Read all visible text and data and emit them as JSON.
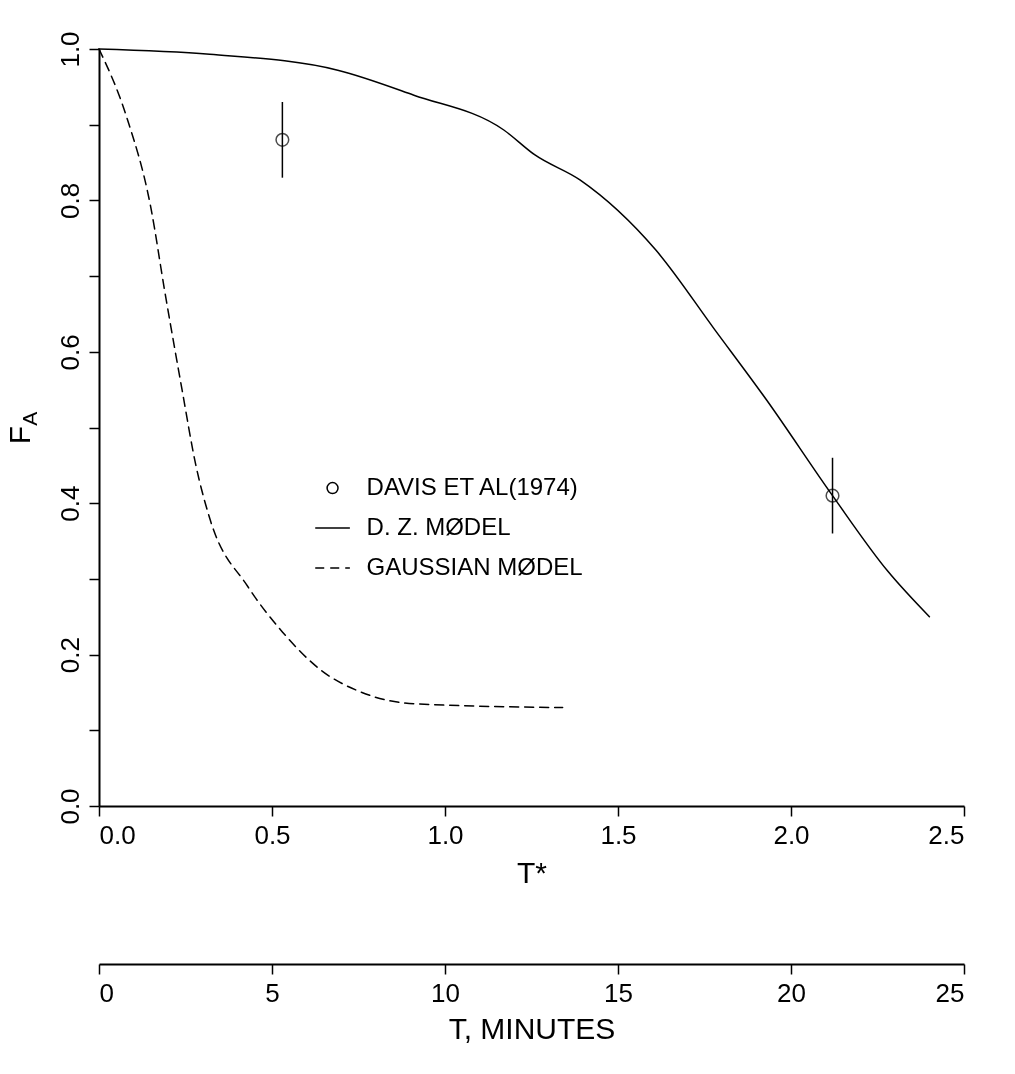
{
  "chart_data": {
    "type": "line",
    "xlabel": "T*",
    "ylabel": "F$_{A}$",
    "x2label": "T, MINUTES",
    "xlim": [
      0,
      2.5
    ],
    "xticks": [
      {
        "value": 0,
        "label": "0.0"
      },
      0.5,
      {
        "value": 1,
        "label": "1.0"
      },
      1.5,
      {
        "value": 2,
        "label": "2.0"
      },
      2.5
    ],
    "ylim": [
      0,
      1
    ],
    "yticks": [
      {
        "value": 0,
        "label": "0.0"
      },
      {
        "value": 0.1,
        "label": null
      },
      0.2,
      {
        "value": 0.3,
        "label": null
      },
      0.4,
      {
        "value": 0.5,
        "label": null
      },
      0.6,
      {
        "value": 0.7,
        "label": null
      },
      0.8,
      {
        "value": 0.9,
        "label": null
      },
      {
        "value": 1,
        "label": "1.0"
      }
    ],
    "x2lim": [
      0,
      25
    ],
    "x2ticks": [
      0,
      5,
      10,
      15,
      20,
      25
    ],
    "legend": "center",
    "series": [
      {
        "name": "DAVIS ET AL(1974)",
        "type": "scatter",
        "marker": "circle",
        "color": "#000000",
        "x": [
          0.53,
          2.12
        ],
        "values": [
          0.88,
          0.41
        ],
        "errors": [
          0.05,
          0.05
        ]
      },
      {
        "name": "D. Z. MØDEL",
        "line_style": "solid",
        "color": "#000000",
        "x": [
          0,
          0.32,
          0.69,
          0.91,
          1.17,
          1.26,
          1.39,
          1.61,
          1.78,
          1.93,
          2.12,
          2.28,
          2.4
        ],
        "values": [
          1,
          0.993,
          0.972,
          0.939,
          0.893,
          0.86,
          0.827,
          0.734,
          0.629,
          0.536,
          0.41,
          0.31,
          0.25
        ]
      },
      {
        "name": "GAUSSIAN MØDEL",
        "line_style": "dashed",
        "color": "#000000",
        "x": [
          0,
          0.08,
          0.15,
          0.19,
          0.24,
          0.28,
          0.32,
          0.43,
          0.53,
          0.64,
          0.76,
          0.91,
          1.34
        ],
        "values": [
          1,
          0.91,
          0.79,
          0.68,
          0.55,
          0.45,
          0.38,
          0.29,
          0.23,
          0.18,
          0.15,
          0.135,
          0.13
        ]
      }
    ]
  }
}
